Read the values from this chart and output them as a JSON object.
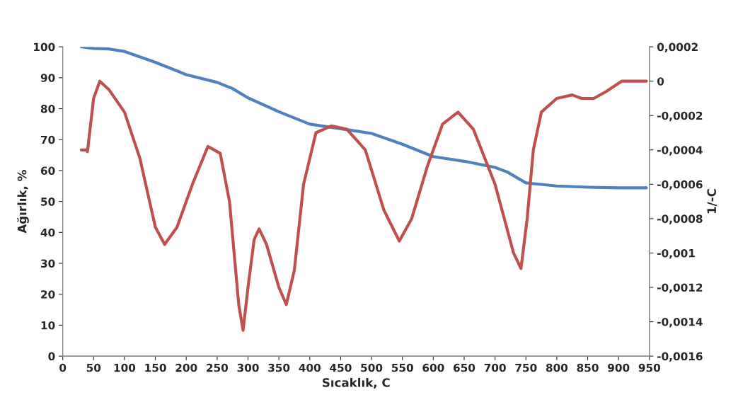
{
  "chart_data": {
    "type": "line",
    "xlabel": "Sıcaklık, C",
    "ylabel": "Ağırlık, %",
    "y2label": "1/-C",
    "xlim": [
      0,
      950
    ],
    "xticks": [
      0,
      50,
      100,
      150,
      200,
      250,
      300,
      350,
      400,
      450,
      500,
      550,
      600,
      650,
      700,
      750,
      800,
      850,
      900,
      950
    ],
    "ylim": [
      0,
      100
    ],
    "yticks": [
      0,
      10,
      20,
      30,
      40,
      50,
      60,
      70,
      80,
      90,
      100
    ],
    "y2lim": [
      -0.0016,
      0.0002
    ],
    "y2ticks": [
      {
        "value": -0.0016,
        "label": "-0,0016"
      },
      {
        "value": -0.0014,
        "label": "-0,0014"
      },
      {
        "value": -0.0012,
        "label": "-0,0012"
      },
      {
        "value": -0.001,
        "label": "-0,001"
      },
      {
        "value": -0.0008,
        "label": "-0,0008"
      },
      {
        "value": -0.0006,
        "label": "-0,0006"
      },
      {
        "value": -0.0004,
        "label": "-0,0004"
      },
      {
        "value": -0.0002,
        "label": "-0,0002"
      },
      {
        "value": 0,
        "label": "0"
      },
      {
        "value": 0.0002,
        "label": "0,0002"
      }
    ],
    "grid": false,
    "series": [
      {
        "color": "#4f81bd",
        "x": [
          30,
          50,
          75,
          100,
          150,
          200,
          250,
          275,
          300,
          350,
          400,
          450,
          500,
          550,
          600,
          650,
          700,
          720,
          750,
          800,
          850,
          900,
          945
        ],
        "values": [
          100,
          99.5,
          99.3,
          98.5,
          95,
          91,
          88.5,
          86.5,
          83.5,
          79,
          75,
          73.5,
          72,
          68.5,
          64.5,
          63,
          61,
          59.5,
          56,
          55,
          54.6,
          54.4,
          54.4
        ]
      },
      {
        "color": "#c0504d",
        "axis": "y2",
        "x": [
          30,
          38,
          40,
          50,
          60,
          75,
          100,
          125,
          150,
          165,
          185,
          210,
          235,
          255,
          270,
          285,
          292,
          300,
          310,
          318,
          330,
          350,
          362,
          375,
          390,
          410,
          435,
          460,
          490,
          520,
          545,
          565,
          590,
          615,
          640,
          665,
          700,
          730,
          742,
          752,
          762,
          775,
          800,
          825,
          840,
          860,
          880,
          905,
          920,
          945
        ],
        "values": [
          -0.0004,
          -0.0004,
          -0.00041,
          -0.0001,
          0,
          -5e-05,
          -0.00018,
          -0.00045,
          -0.00085,
          -0.00095,
          -0.00085,
          -0.0006,
          -0.00038,
          -0.00042,
          -0.0007,
          -0.0013,
          -0.00145,
          -0.0012,
          -0.00092,
          -0.00086,
          -0.00095,
          -0.0012,
          -0.0013,
          -0.0011,
          -0.0006,
          -0.0003,
          -0.00026,
          -0.00028,
          -0.0004,
          -0.00075,
          -0.00093,
          -0.0008,
          -0.0005,
          -0.00025,
          -0.00018,
          -0.00028,
          -0.0006,
          -0.001,
          -0.00109,
          -0.0008,
          -0.0004,
          -0.00018,
          -0.0001,
          -8e-05,
          -0.0001,
          -0.0001,
          -6e-05,
          0,
          0,
          0
        ]
      }
    ]
  }
}
